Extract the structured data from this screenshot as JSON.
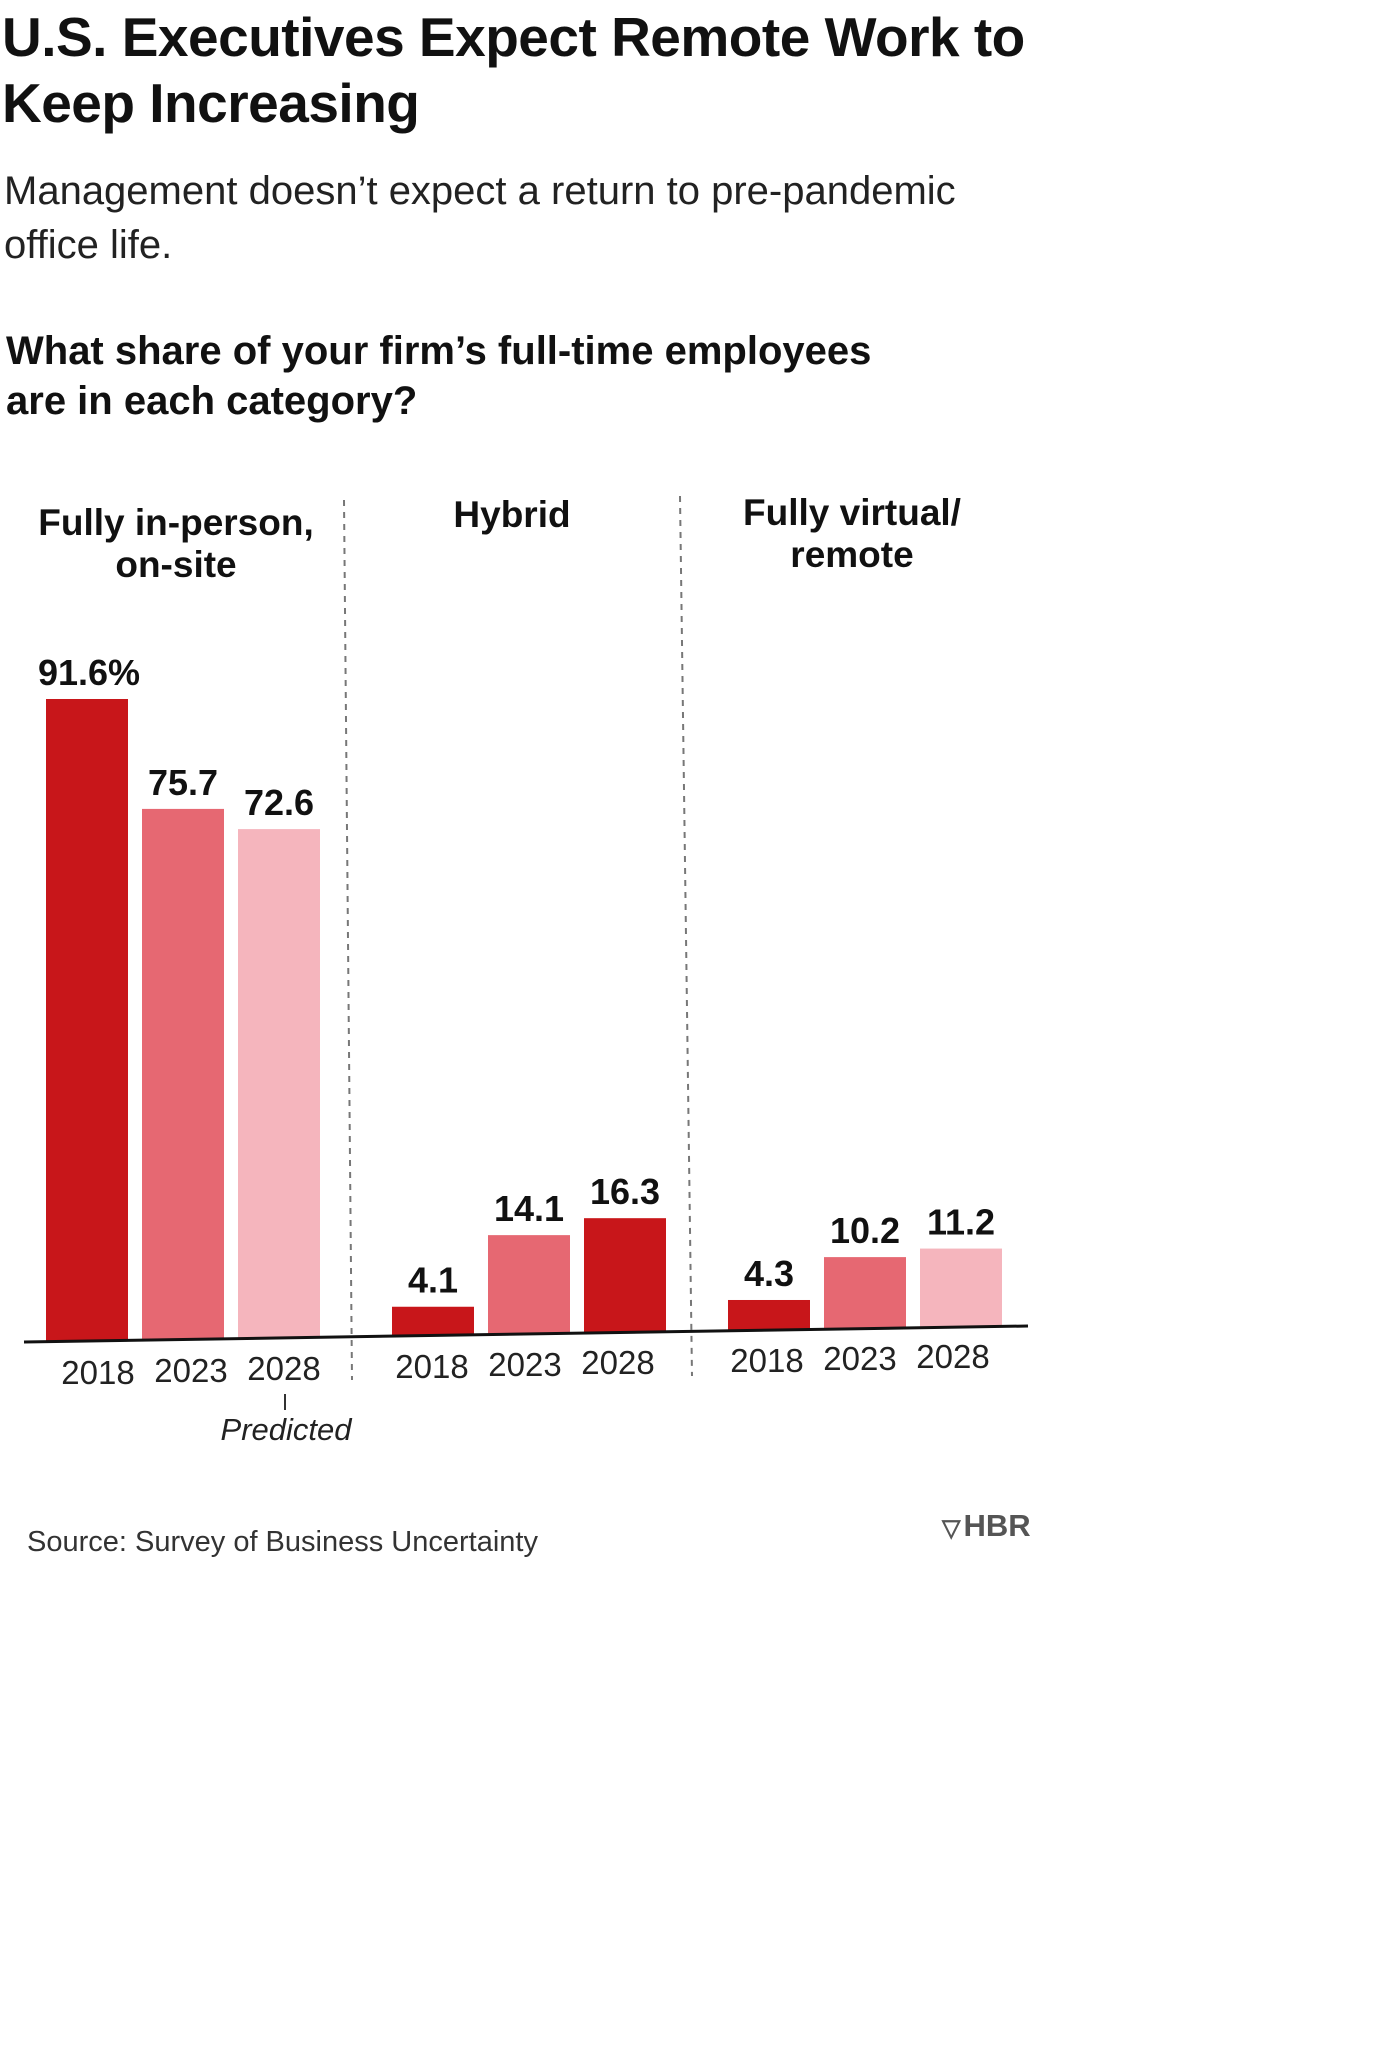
{
  "header": {
    "title": "U.S. Executives Expect Remote Work to Keep Increasing",
    "subtitle": "Management doesn’t expect a return to pre-pandemic office life.",
    "question": "What share of your firm’s full-time employees are in each category?"
  },
  "chart_data": {
    "type": "bar",
    "title": "What share of your firm’s full-time employees are in each category?",
    "categories": [
      "2018",
      "2023",
      "2028"
    ],
    "panels": [
      {
        "name": "Fully in-person, on-site",
        "values": [
          91.6,
          75.7,
          72.6
        ],
        "labels": [
          "91.6%",
          "75.7",
          "72.6"
        ]
      },
      {
        "name": "Hybrid",
        "values": [
          4.1,
          14.1,
          16.3
        ],
        "labels": [
          "4.1",
          "14.1",
          "16.3"
        ]
      },
      {
        "name": "Fully virtual/ remote",
        "values": [
          4.3,
          10.2,
          11.2
        ],
        "labels": [
          "4.3",
          "10.2",
          "11.2"
        ]
      }
    ],
    "annotations": [
      "Predicted"
    ],
    "ylim": [
      0,
      100
    ],
    "grid": false,
    "colors": {
      "in_person": [
        "#c8161a",
        "#e66872",
        "#f5b5bd"
      ],
      "hybrid": [
        "#c8161a",
        "#e66872",
        "#c8161a"
      ],
      "remote": [
        "#c8161a",
        "#e66872",
        "#f5b5bd"
      ]
    },
    "baseline_color": "#111111",
    "divider_color": "#777777"
  },
  "footer": {
    "source": "Source: Survey of Business Uncertainty",
    "logo_mark": "▽",
    "logo_text": "HBR"
  }
}
